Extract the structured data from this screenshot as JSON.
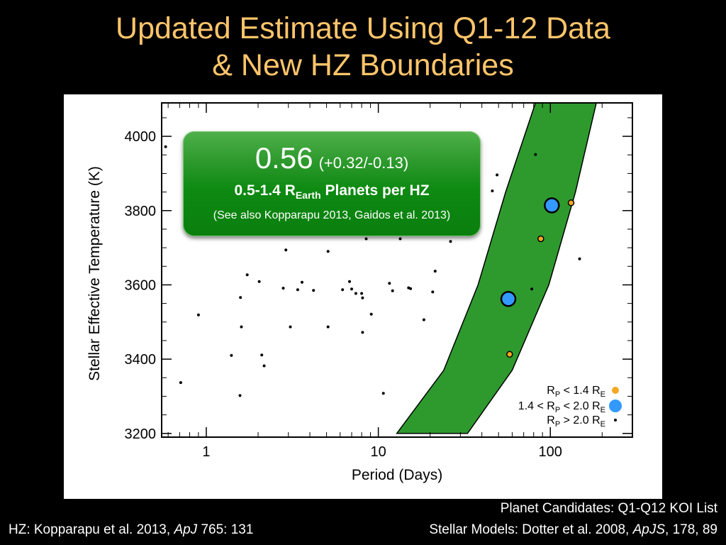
{
  "title": {
    "line1": "Updated Estimate Using Q1-12 Data",
    "line2": "& New HZ Boundaries"
  },
  "result_box": {
    "value": "0.56",
    "range": "(+0.32/-0.13)",
    "planets_prefix": "0.5-1.4 R",
    "planets_sub": "Earth",
    "planets_suffix": " Planets per HZ",
    "note": "(See also Kopparapu 2013, Gaidos et al. 2013)"
  },
  "legend": {
    "entries": [
      {
        "prefix": "R",
        "sub1": "P",
        "mid": " < 1.4 R",
        "sub2": "E",
        "marker": "small-orange"
      },
      {
        "prefix": "1.4 < R",
        "sub1": "P",
        "mid": " < 2.0 R",
        "sub2": "E",
        "marker": "large-blue"
      },
      {
        "prefix": "R",
        "sub1": "P",
        "mid": " > 2.0 R",
        "sub2": "E",
        "marker": "dot-black"
      }
    ]
  },
  "credits": {
    "hz": {
      "before": "HZ: Kopparapu et al. 2013, ",
      "journal": "ApJ",
      "after": " 765: 131"
    },
    "planet_candidates": "Planet Candidates: Q1-Q12 KOI List",
    "stellar_models": {
      "before": "Stellar Models: Dotter et al. 2008, ",
      "journal": "ApJS",
      "after": ", 178, 89"
    }
  },
  "colors": {
    "title": "#FFC56A",
    "hz_band": "#2E9A2E",
    "small_planet": "#F5A623",
    "medium_planet": "#3399FF",
    "box_green": "#0E8A12"
  },
  "chart_data": {
    "type": "scatter",
    "xlabel": "Period (Days)",
    "ylabel": "Stellar Effective Temperature (K)",
    "xscale": "log",
    "xlim": [
      0.55,
      300
    ],
    "ylim": [
      3190,
      4090
    ],
    "x_ticks": [
      1,
      10,
      100
    ],
    "x_tick_labels": [
      "1",
      "10",
      "100"
    ],
    "y_ticks": [
      3200,
      3400,
      3600,
      3800,
      4000
    ],
    "y_tick_labels": [
      "3200",
      "3400",
      "3600",
      "3800",
      "4000"
    ],
    "hz_band": {
      "inner_edge": [
        [
          12.8,
          3200
        ],
        [
          24,
          3370
        ],
        [
          38,
          3600
        ],
        [
          55,
          3850
        ],
        [
          82,
          4090
        ]
      ],
      "outer_edge": [
        [
          33,
          3200
        ],
        [
          60,
          3370
        ],
        [
          98,
          3600
        ],
        [
          140,
          3850
        ],
        [
          185,
          4090
        ]
      ]
    },
    "series": [
      {
        "name": "R_P < 1.4 R_E",
        "points": [
          [
            58,
            3413
          ],
          [
            88,
            3724
          ],
          [
            132,
            3821
          ]
        ]
      },
      {
        "name": "1.4 < R_P < 2.0 R_E",
        "points": [
          [
            57,
            3562
          ],
          [
            102,
            3814
          ]
        ]
      },
      {
        "name": "R_P > 2.0 R_E",
        "points": [
          [
            0.58,
            3972
          ],
          [
            0.71,
            3337
          ],
          [
            0.9,
            3519
          ],
          [
            1.4,
            3410
          ],
          [
            1.58,
            3566
          ],
          [
            1.6,
            3487
          ],
          [
            1.57,
            3302
          ],
          [
            1.73,
            3627
          ],
          [
            2.03,
            3609
          ],
          [
            2.1,
            3411
          ],
          [
            2.17,
            3382
          ],
          [
            2.8,
            3591
          ],
          [
            2.9,
            3694
          ],
          [
            3.08,
            3487
          ],
          [
            3.4,
            3587
          ],
          [
            3.6,
            3607
          ],
          [
            4.2,
            3585
          ],
          [
            5.1,
            3690
          ],
          [
            5.1,
            3487
          ],
          [
            6.2,
            3587
          ],
          [
            6.8,
            3609
          ],
          [
            7.0,
            3589
          ],
          [
            7.4,
            3577
          ],
          [
            8.0,
            3577
          ],
          [
            8.1,
            3565
          ],
          [
            8.1,
            3472
          ],
          [
            8.5,
            3724
          ],
          [
            9.1,
            3521
          ],
          [
            10.7,
            3308
          ],
          [
            11.6,
            3604
          ],
          [
            12.1,
            3584
          ],
          [
            13.4,
            3724
          ],
          [
            15.0,
            3592
          ],
          [
            15.4,
            3590
          ],
          [
            18.4,
            3506
          ],
          [
            20.7,
            3581
          ],
          [
            21.4,
            3637
          ],
          [
            26.3,
            3717
          ],
          [
            32.0,
            3736
          ],
          [
            46.0,
            3853
          ],
          [
            49.0,
            3896
          ],
          [
            78.0,
            3589
          ],
          [
            82.0,
            3951
          ],
          [
            148.0,
            3670
          ],
          [
            6.9,
            3736
          ]
        ]
      }
    ]
  }
}
